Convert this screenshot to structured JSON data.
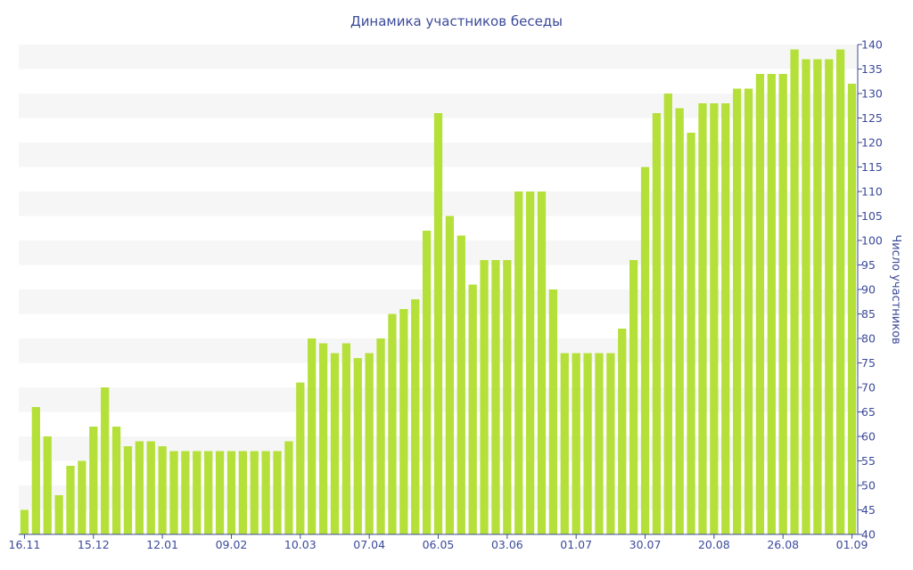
{
  "chart_data": {
    "type": "bar",
    "title": "Динамика участников беседы",
    "xlabel": "",
    "ylabel": "Число участников",
    "ylim": [
      40,
      140
    ],
    "y_ticks": [
      40,
      45,
      50,
      55,
      60,
      65,
      70,
      75,
      80,
      85,
      90,
      95,
      100,
      105,
      110,
      115,
      120,
      125,
      130,
      135,
      140
    ],
    "y_axis_position": "right",
    "grid": "alternating horizontal bands",
    "x_tick_labels": [
      {
        "label": "16.11",
        "index": 0
      },
      {
        "label": "15.12",
        "index": 6
      },
      {
        "label": "12.01",
        "index": 12
      },
      {
        "label": "09.02",
        "index": 18
      },
      {
        "label": "10.03",
        "index": 24
      },
      {
        "label": "07.04",
        "index": 30
      },
      {
        "label": "06.05",
        "index": 36
      },
      {
        "label": "03.06",
        "index": 42
      },
      {
        "label": "01.07",
        "index": 48
      },
      {
        "label": "30.07",
        "index": 54
      },
      {
        "label": "20.08",
        "index": 60
      },
      {
        "label": "26.08",
        "index": 66
      },
      {
        "label": "01.09",
        "index": 72
      }
    ],
    "values": [
      45,
      66,
      60,
      48,
      54,
      55,
      62,
      70,
      62,
      58,
      59,
      59,
      58,
      57,
      57,
      57,
      57,
      57,
      57,
      57,
      57,
      57,
      57,
      59,
      71,
      80,
      79,
      77,
      79,
      76,
      77,
      80,
      85,
      86,
      88,
      102,
      126,
      105,
      101,
      91,
      96,
      96,
      96,
      110,
      110,
      110,
      90,
      77,
      77,
      77,
      77,
      77,
      82,
      96,
      115,
      126,
      130,
      127,
      122,
      128,
      128,
      128,
      131,
      131,
      134,
      134,
      134,
      139,
      137,
      137,
      137,
      139,
      132
    ],
    "colors": {
      "bar": "#b5e03a",
      "band": "#f6f6f6",
      "text": "#3b4a9a",
      "axis": "#3b4a9a"
    }
  }
}
